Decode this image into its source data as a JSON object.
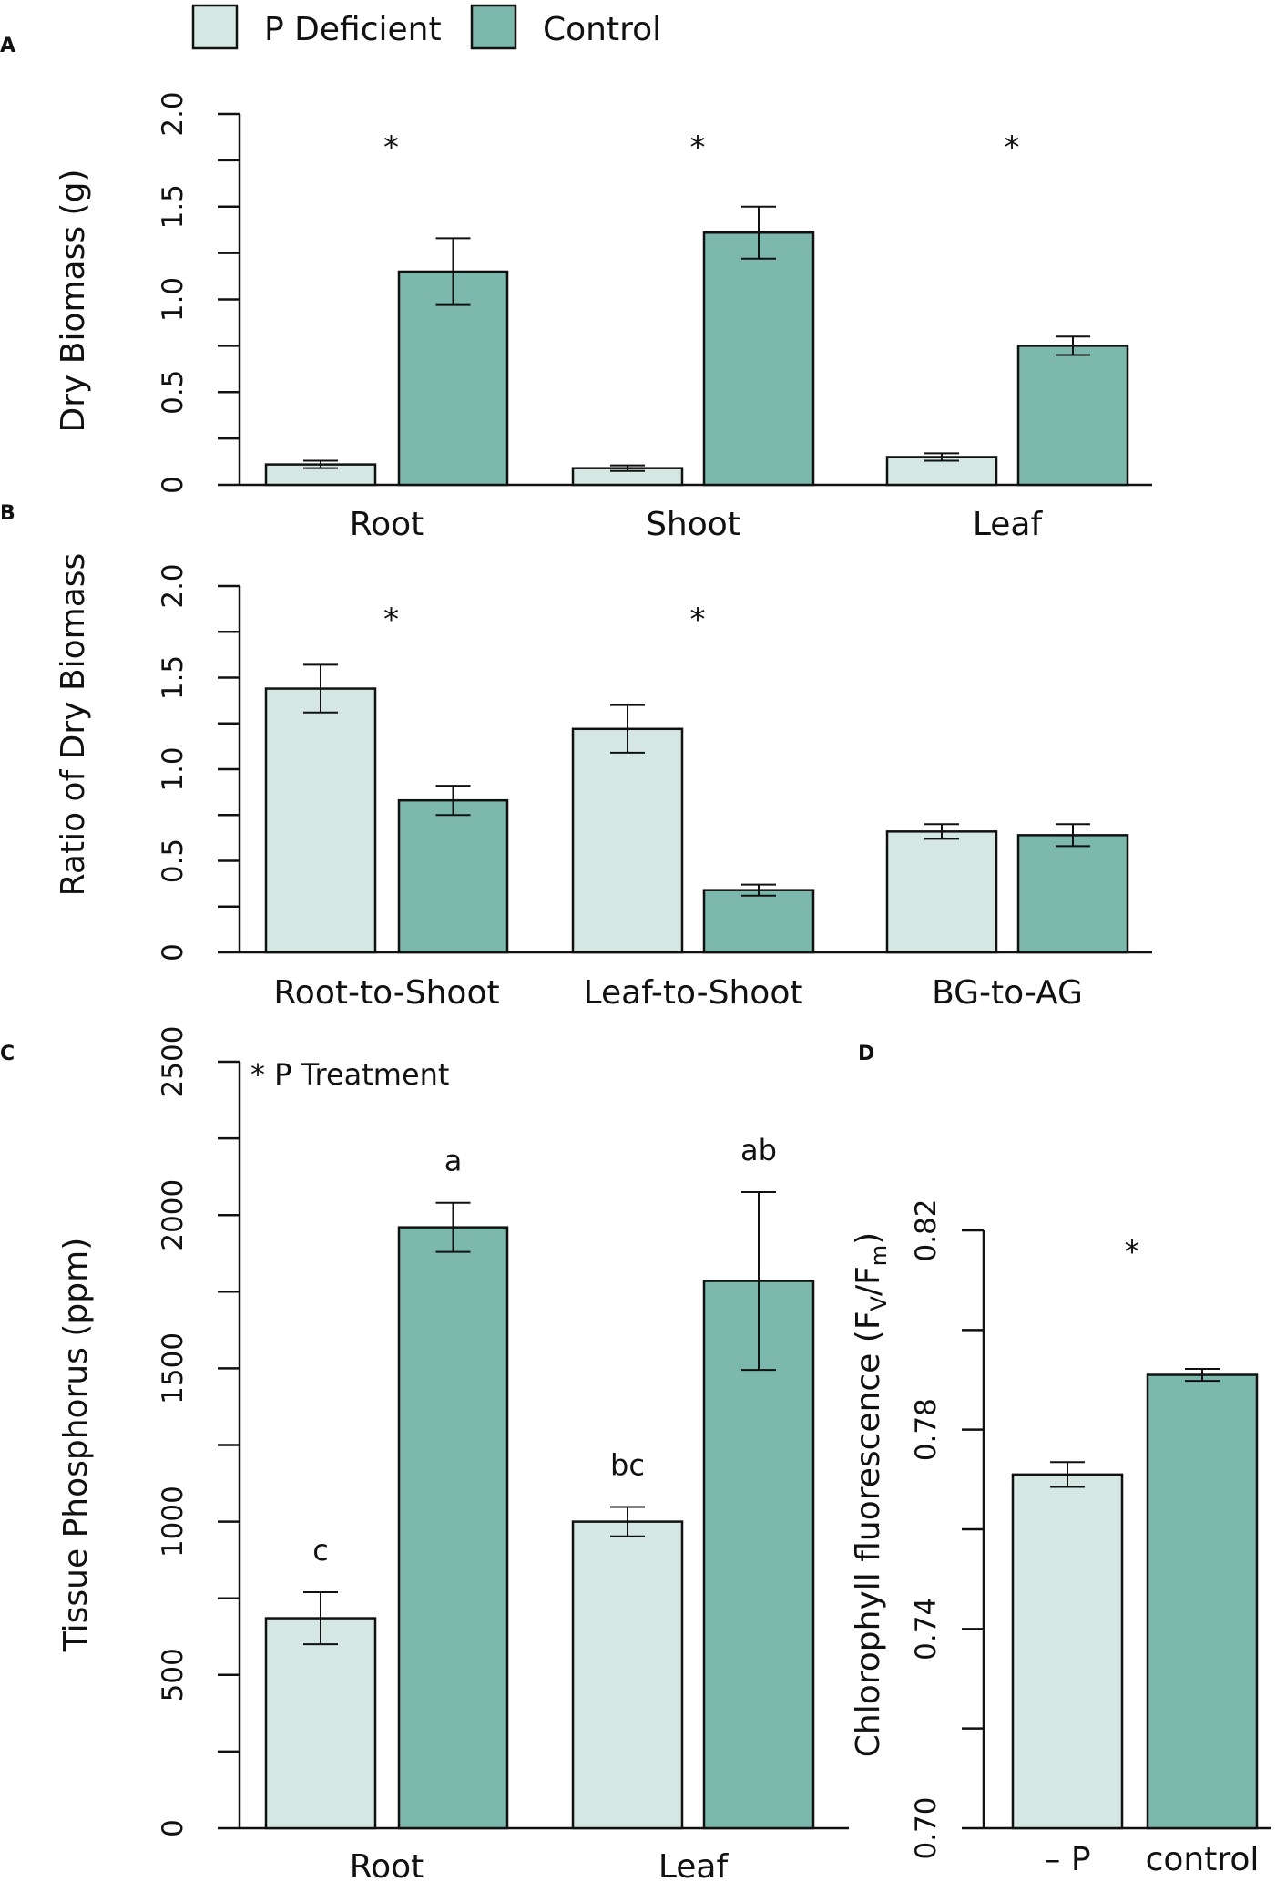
{
  "legend": {
    "items": [
      {
        "label": "P Deficient",
        "color": "#d4e7e3"
      },
      {
        "label": "Control",
        "color": "#7db8ad"
      }
    ]
  },
  "colors": {
    "p_deficient": "#d4e7e3",
    "control": "#7db8ad",
    "stroke": "#111111"
  },
  "chart_data": [
    {
      "panel": "A",
      "type": "bar",
      "ylabel": "Dry Biomass (g)",
      "ylim": [
        0,
        2.0
      ],
      "yticks": [
        "0",
        "0.5",
        "1.0",
        "1.5",
        "2.0"
      ],
      "categories": [
        "Root",
        "Shoot",
        "Leaf"
      ],
      "series": [
        {
          "name": "P Deficient",
          "values": [
            0.11,
            0.09,
            0.15
          ],
          "errors": [
            0.02,
            0.015,
            0.02
          ]
        },
        {
          "name": "Control",
          "values": [
            1.15,
            1.36,
            0.75
          ],
          "errors": [
            0.18,
            0.14,
            0.05
          ]
        }
      ],
      "annotations": [
        "*",
        "*",
        "*"
      ]
    },
    {
      "panel": "B",
      "type": "bar",
      "ylabel": "Ratio of Dry Biomass",
      "ylim": [
        0,
        2.0
      ],
      "yticks": [
        "0",
        "0.5",
        "1.0",
        "1.5",
        "2.0"
      ],
      "categories": [
        "Root-to-Shoot",
        "Leaf-to-Shoot",
        "BG-to-AG"
      ],
      "series": [
        {
          "name": "P Deficient",
          "values": [
            1.44,
            1.22,
            0.66
          ],
          "errors": [
            0.13,
            0.13,
            0.04
          ]
        },
        {
          "name": "Control",
          "values": [
            0.83,
            0.34,
            0.64
          ],
          "errors": [
            0.08,
            0.03,
            0.06
          ]
        }
      ],
      "annotations": [
        "*",
        "*",
        ""
      ]
    },
    {
      "panel": "C",
      "type": "bar",
      "ylabel": "Tissue Phosphorus (ppm)",
      "ylim": [
        0,
        2500
      ],
      "yticks": [
        "0",
        "500",
        "1000",
        "1500",
        "2000",
        "2500"
      ],
      "categories": [
        "Root",
        "Leaf"
      ],
      "series": [
        {
          "name": "P Deficient",
          "values": [
            685,
            1000
          ],
          "errors": [
            85,
            48
          ],
          "letters": [
            "c",
            "bc"
          ]
        },
        {
          "name": "Control",
          "values": [
            1960,
            1785
          ],
          "errors": [
            80,
            290
          ],
          "letters": [
            "a",
            "ab"
          ]
        }
      ],
      "note": "* P Treatment"
    },
    {
      "panel": "D",
      "type": "bar",
      "ylabel": "Chlorophyll fluorescence (F",
      "ylabel_sub1": "V",
      "ylabel_mid": "/F",
      "ylabel_sub2": "m",
      "ylabel_end": ")",
      "ylim": [
        0.7,
        0.82
      ],
      "yticks": [
        "0.70",
        "0.74",
        "0.78",
        "0.82"
      ],
      "categories": [
        "– P",
        "control"
      ],
      "values": [
        0.771,
        0.791
      ],
      "errors": [
        0.0025,
        0.0012
      ],
      "annotation": "*"
    }
  ]
}
